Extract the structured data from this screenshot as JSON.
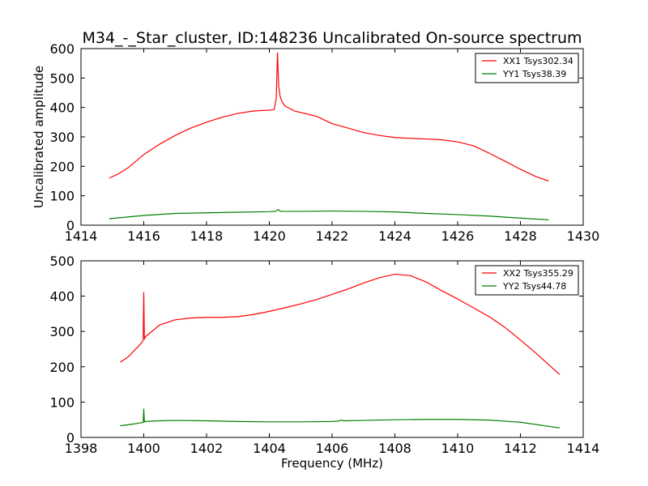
{
  "chart_data": [
    {
      "type": "line",
      "title": "M34_-_Star_cluster, ID:148236 Uncalibrated On-source spectrum",
      "xlabel": "",
      "ylabel": "Uncalibrated amplitude",
      "xlim": [
        1414,
        1430
      ],
      "ylim": [
        0,
        600
      ],
      "xticks": [
        1414,
        1416,
        1418,
        1420,
        1422,
        1424,
        1426,
        1428,
        1430
      ],
      "yticks": [
        0,
        100,
        200,
        300,
        400,
        500,
        600
      ],
      "legend_position": "top-right",
      "series": [
        {
          "name": "XX1 Tsys302.34",
          "color": "#ff0000",
          "x": [
            1414.9,
            1415.2,
            1415.5,
            1416.0,
            1416.5,
            1417.0,
            1417.5,
            1418.0,
            1418.5,
            1419.0,
            1419.5,
            1420.0,
            1420.15,
            1420.22,
            1420.26,
            1420.3,
            1420.34,
            1420.4,
            1420.5,
            1420.8,
            1421.0,
            1421.5,
            1422.0,
            1422.5,
            1423.0,
            1423.5,
            1424.0,
            1424.5,
            1425.0,
            1425.5,
            1426.0,
            1426.5,
            1427.0,
            1427.5,
            1428.0,
            1428.5,
            1428.9
          ],
          "y": [
            160,
            175,
            195,
            240,
            275,
            305,
            330,
            350,
            367,
            380,
            388,
            391,
            392,
            430,
            585,
            470,
            440,
            420,
            405,
            388,
            383,
            370,
            345,
            330,
            315,
            305,
            298,
            295,
            293,
            290,
            283,
            270,
            245,
            218,
            190,
            165,
            150
          ]
        },
        {
          "name": "YY1 Tsys38.39",
          "color": "#008000",
          "x": [
            1414.9,
            1416.0,
            1417.0,
            1418.0,
            1419.0,
            1420.0,
            1420.2,
            1420.28,
            1420.36,
            1421.0,
            1422.0,
            1423.0,
            1424.0,
            1425.0,
            1426.0,
            1427.0,
            1428.0,
            1428.9
          ],
          "y": [
            22,
            33,
            40,
            42,
            44,
            46,
            47,
            53,
            47,
            47,
            48,
            47,
            45,
            40,
            36,
            31,
            24,
            18
          ]
        }
      ]
    },
    {
      "type": "line",
      "title": "",
      "xlabel": "Frequency (MHz)",
      "ylabel": "",
      "xlim": [
        1398,
        1414
      ],
      "ylim": [
        0,
        500
      ],
      "xticks": [
        1398,
        1400,
        1402,
        1404,
        1406,
        1408,
        1410,
        1412,
        1414
      ],
      "yticks": [
        0,
        100,
        200,
        300,
        400,
        500
      ],
      "legend_position": "top-right",
      "series": [
        {
          "name": "XX2 Tsys355.29",
          "color": "#ff0000",
          "x": [
            1399.25,
            1399.5,
            1399.8,
            1399.95,
            1399.98,
            1400.0,
            1400.02,
            1400.05,
            1400.5,
            1401.0,
            1401.5,
            1402.0,
            1402.5,
            1403.0,
            1403.5,
            1404.0,
            1404.5,
            1405.0,
            1405.5,
            1406.0,
            1406.5,
            1407.0,
            1407.5,
            1408.0,
            1408.5,
            1409.0,
            1409.5,
            1410.0,
            1410.5,
            1411.0,
            1411.5,
            1412.0,
            1412.5,
            1413.0,
            1413.25
          ],
          "y": [
            213,
            228,
            255,
            270,
            275,
            410,
            278,
            285,
            318,
            333,
            338,
            340,
            340,
            342,
            348,
            357,
            367,
            378,
            390,
            405,
            420,
            437,
            452,
            462,
            458,
            440,
            415,
            392,
            367,
            342,
            312,
            276,
            238,
            198,
            178
          ]
        },
        {
          "name": "YY2 Tsys44.78",
          "color": "#008000",
          "x": [
            1399.25,
            1399.6,
            1399.95,
            1399.98,
            1400.0,
            1400.02,
            1400.05,
            1400.5,
            1401.0,
            1402.0,
            1403.0,
            1404.0,
            1405.0,
            1406.0,
            1406.2,
            1406.28,
            1406.36,
            1407.0,
            1408.0,
            1409.0,
            1410.0,
            1411.0,
            1412.0,
            1413.0,
            1413.25
          ],
          "y": [
            33,
            37,
            42,
            42,
            80,
            44,
            45,
            47,
            48,
            47,
            45,
            44,
            44,
            45,
            46,
            49,
            47,
            48,
            50,
            51,
            51,
            49,
            43,
            30,
            27
          ]
        }
      ]
    }
  ]
}
